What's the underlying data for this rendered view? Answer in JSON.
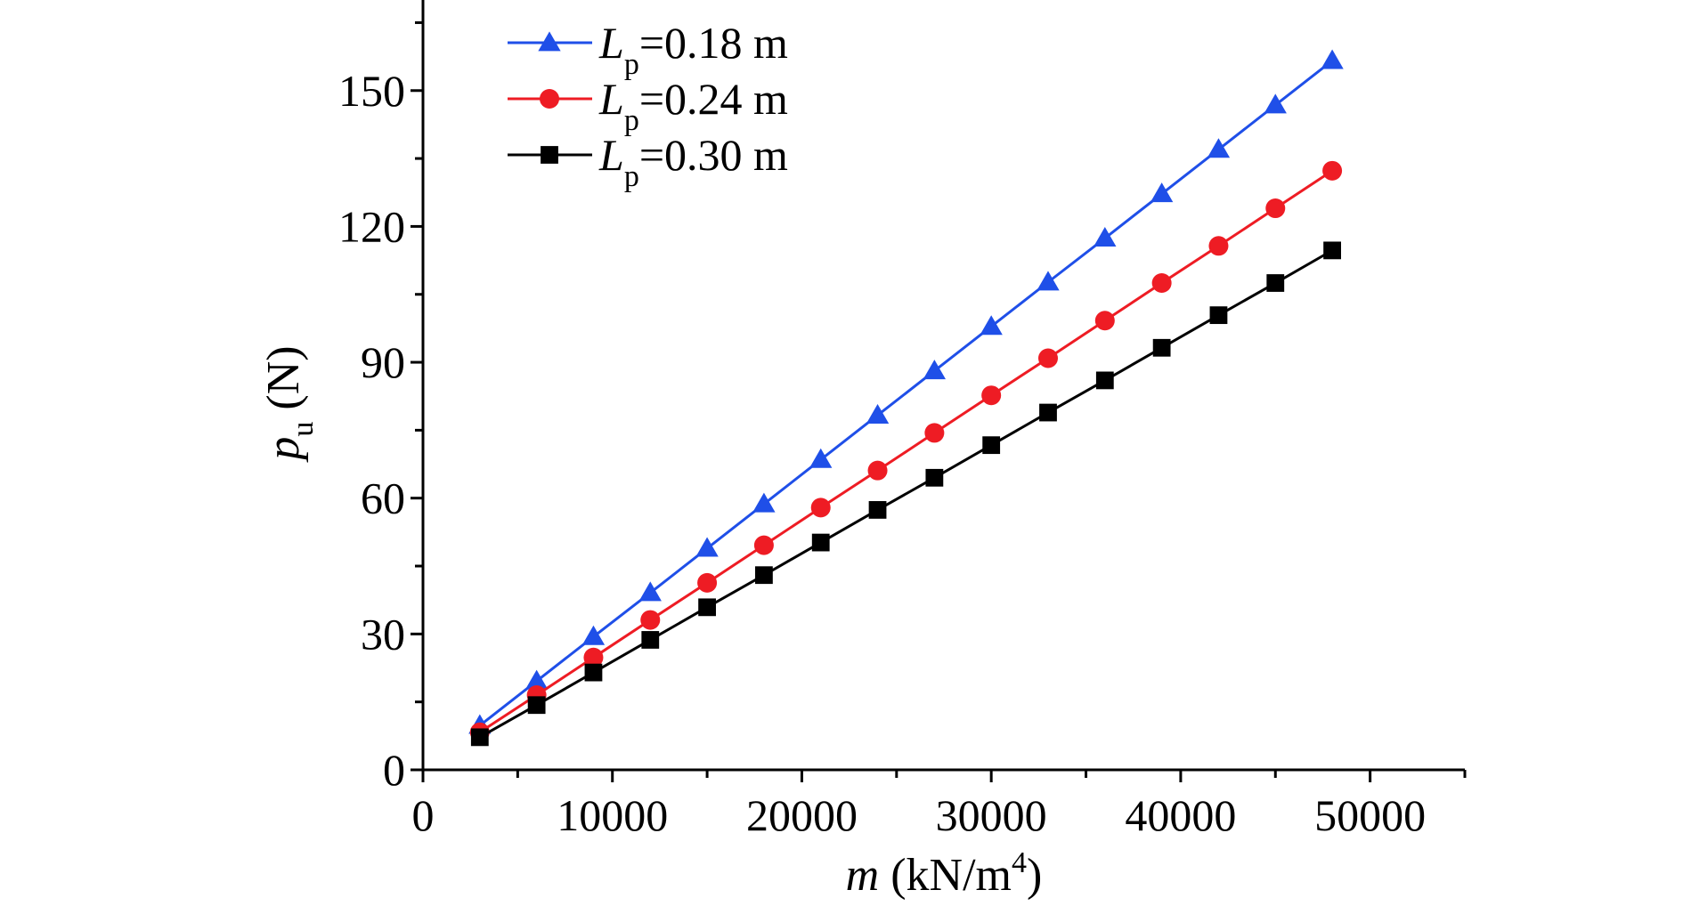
{
  "chart_data": {
    "type": "line",
    "xlabel": {
      "var": "m",
      "unit_pre": " (kN/m",
      "unit_sup": "4",
      "unit_post": ")"
    },
    "ylabel": {
      "var": "p",
      "sub": "u",
      "unit": " (N)"
    },
    "xlim": [
      0,
      55000
    ],
    "ylim": [
      0,
      170
    ],
    "xticks": [
      0,
      10000,
      20000,
      30000,
      40000,
      50000
    ],
    "xtick_labels": [
      "0",
      "10000",
      "20000",
      "30000",
      "40000",
      "50000"
    ],
    "yticks": [
      0,
      30,
      60,
      90,
      120,
      150
    ],
    "ytick_labels": [
      "0",
      "30",
      "60",
      "90",
      "120",
      "150"
    ],
    "grid": false,
    "legend_position": "top-left",
    "x": [
      3000,
      6000,
      9000,
      12000,
      15000,
      18000,
      21000,
      24000,
      27000,
      30000,
      33000,
      36000,
      39000,
      42000,
      45000,
      48000
    ],
    "series": [
      {
        "name": "L_p=0.18 m",
        "legend_var": "L",
        "legend_sub": "p",
        "legend_value": "=0.18 m",
        "color": "#1f4fe8",
        "marker": "triangle",
        "values": [
          9.8,
          19.6,
          29.4,
          39.1,
          48.9,
          58.7,
          68.5,
          78.3,
          88.1,
          97.9,
          107.7,
          117.4,
          127.2,
          137.0,
          146.8,
          156.6
        ]
      },
      {
        "name": "L_p=0.24 m",
        "legend_var": "L",
        "legend_sub": "p",
        "legend_value": "=0.24 m",
        "color": "#ee1c24",
        "marker": "circle",
        "values": [
          8.3,
          16.5,
          24.8,
          33.1,
          41.3,
          49.6,
          57.9,
          66.1,
          74.4,
          82.7,
          90.9,
          99.2,
          107.5,
          115.7,
          124.0,
          132.3
        ]
      },
      {
        "name": "L_p=0.30 m",
        "legend_var": "L",
        "legend_sub": "p",
        "legend_value": "=0.30 m",
        "color": "#000000",
        "marker": "square",
        "values": [
          7.2,
          14.3,
          21.5,
          28.7,
          35.9,
          43.0,
          50.2,
          57.4,
          64.5,
          71.7,
          78.9,
          86.0,
          93.2,
          100.4,
          107.5,
          114.7
        ]
      }
    ]
  }
}
